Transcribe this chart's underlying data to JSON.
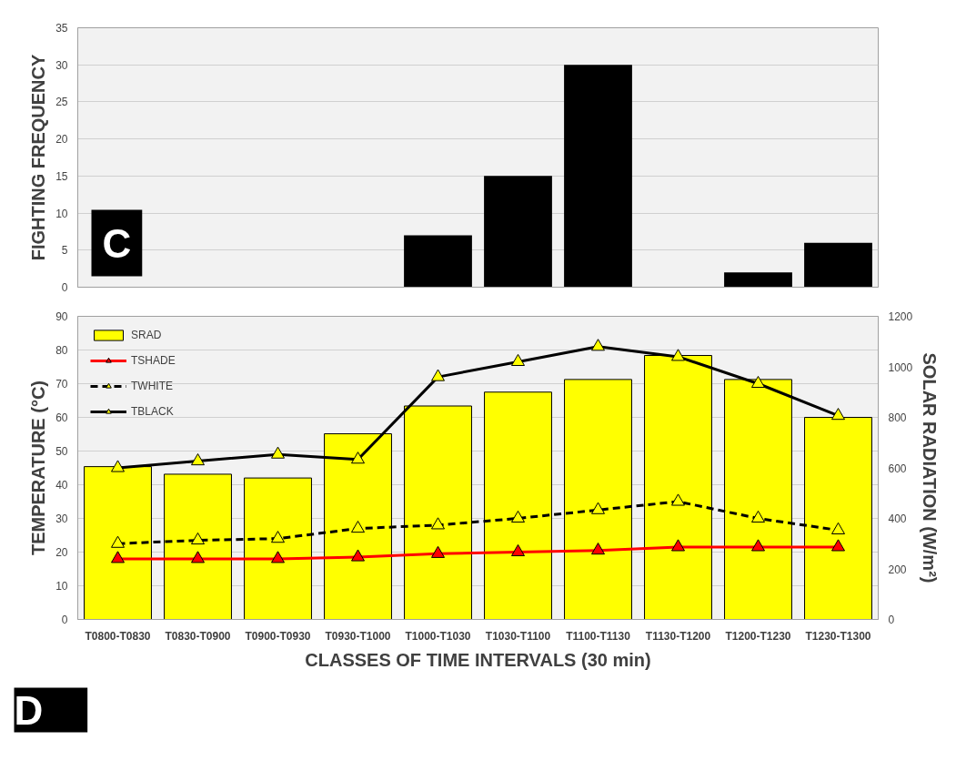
{
  "chart_data": [
    {
      "type": "bar",
      "ylabel": "FIGHTING FREQUENCY",
      "categories": [
        null,
        null,
        null,
        null,
        null,
        null,
        null,
        null,
        null,
        null
      ],
      "values": [
        0,
        0,
        0,
        0,
        7,
        15,
        30,
        0,
        2,
        6
      ],
      "color": "#000000",
      "ylim": [
        0,
        35
      ],
      "yticks": [
        0,
        5,
        10,
        15,
        20,
        25,
        30,
        35
      ],
      "grid": "y",
      "tick_labels": "y",
      "legend": false,
      "annotations": [
        "C"
      ]
    },
    {
      "type": "bar",
      "xlabel": "CLASSES OF TIME INTERVALS (30 min)",
      "ylabel": "TEMPERATURE (°C)",
      "y2label": "SOLAR RADIATION (W/m²)",
      "categories": [
        "T0800-T0830",
        "T0830-T0900",
        "T0900-T0930",
        "T0930-T1000",
        "T1000-T1030",
        "T1030-T1100",
        "T1100-T1130",
        "T1130-T1200",
        "T1200-T1230",
        "T1230-T1300"
      ],
      "series": [
        {
          "name": "SRAD",
          "type": "bar",
          "axis": "y2",
          "color": "#ffff00",
          "values": [
            605,
            575,
            560,
            735,
            845,
            900,
            950,
            1045,
            950,
            800
          ]
        },
        {
          "name": "TSHADE",
          "type": "line",
          "color": "#ff0000",
          "marker": "triangle",
          "line_style": "solid",
          "values": [
            18,
            18,
            18,
            18.5,
            19.5,
            20,
            20.5,
            21.5,
            21.5,
            21.5
          ]
        },
        {
          "name": "TWHITE",
          "type": "line",
          "color": "#000000",
          "marker": "triangle",
          "line_style": "dashed",
          "values": [
            22.5,
            23.5,
            24,
            27,
            28,
            30,
            32.5,
            35,
            30,
            26.5
          ]
        },
        {
          "name": "TBLACK",
          "type": "line",
          "color": "#000000",
          "marker": "triangle",
          "line_style": "solid",
          "values": [
            45,
            47,
            49,
            47.5,
            72,
            76.5,
            81,
            78,
            70,
            60.5
          ]
        }
      ],
      "ylim": [
        0,
        90
      ],
      "yticks": [
        0,
        10,
        20,
        30,
        40,
        50,
        60,
        70,
        80,
        90
      ],
      "y2lim": [
        0,
        1200
      ],
      "y2ticks": [
        0,
        200,
        400,
        600,
        800,
        1000,
        1200
      ],
      "grid": "y",
      "legend": "top left",
      "annotations": [
        "D"
      ]
    }
  ]
}
